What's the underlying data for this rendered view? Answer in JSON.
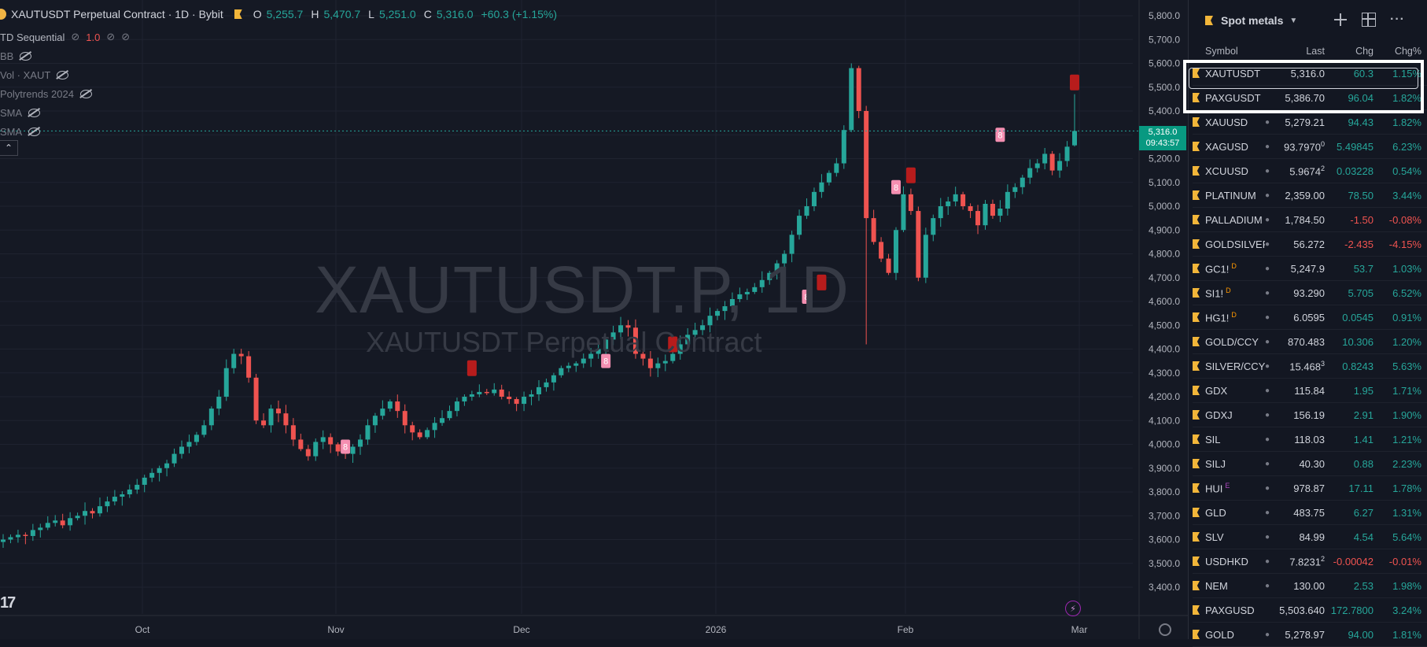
{
  "legend": {
    "title": "XAUTUSDT Perpetual Contract · 1D · Bybit",
    "o_label": "O",
    "o": "5,255.7",
    "h_label": "H",
    "h": "5,470.7",
    "l_label": "L",
    "l": "5,251.0",
    "c_label": "C",
    "c": "5,316.0",
    "change": "+60.3 (+1.15%)"
  },
  "indicators": [
    {
      "name": "TD Sequential",
      "value": "1.0"
    },
    {
      "name": "BB"
    },
    {
      "name": "Vol · XAUT"
    },
    {
      "name": "Polytrends 2024"
    },
    {
      "name": "SMA"
    },
    {
      "name": "SMA"
    }
  ],
  "watermark": {
    "symbol": "XAUTUSDT.P, 1D",
    "description": "XAUTUSDT Perpetual Contract"
  },
  "price_tag": {
    "price": "5,316.0",
    "countdown": "09:43:57"
  },
  "chart_data": {
    "type": "candlestick",
    "ylim": [
      3350,
      5850
    ],
    "y_ticks": [
      "5,800.0",
      "5,700.0",
      "5,600.0",
      "5,500.0",
      "5,400.0",
      "5,300.0",
      "5,200.0",
      "5,100.0",
      "5,000.0",
      "4,900.0",
      "4,800.0",
      "4,700.0",
      "4,600.0",
      "4,500.0",
      "4,400.0",
      "4,300.0",
      "4,200.0",
      "4,100.0",
      "4,000.0",
      "3,900.0",
      "3,800.0",
      "3,700.0",
      "3,600.0",
      "3,500.0",
      "3,400.0"
    ],
    "x_ticks": [
      "Oct",
      "Nov",
      "Dec",
      "2026",
      "Feb",
      "Mar"
    ],
    "last_price": 5316.0,
    "closes": [
      3600,
      3610,
      3620,
      3615,
      3640,
      3650,
      3670,
      3680,
      3660,
      3690,
      3700,
      3720,
      3710,
      3740,
      3760,
      3780,
      3790,
      3810,
      3830,
      3860,
      3880,
      3900,
      3920,
      3960,
      3990,
      4010,
      4040,
      4080,
      4150,
      4200,
      4320,
      4380,
      4370,
      4280,
      4100,
      4080,
      4150,
      4130,
      4080,
      4020,
      3980,
      3950,
      4010,
      4030,
      4000,
      3970,
      3960,
      3990,
      4020,
      4080,
      4120,
      4150,
      4180,
      4140,
      4080,
      4050,
      4030,
      4060,
      4090,
      4110,
      4140,
      4180,
      4200,
      4210,
      4220,
      4215,
      4230,
      4200,
      4190,
      4170,
      4200,
      4210,
      4240,
      4260,
      4290,
      4320,
      4330,
      4340,
      4360,
      4380,
      4400,
      4440,
      4470,
      4500,
      4490,
      4380,
      4360,
      4320,
      4340,
      4350,
      4380,
      4420,
      4460,
      4480,
      4500,
      4540,
      4560,
      4580,
      4610,
      4630,
      4640,
      4660,
      4690,
      4720,
      4760,
      4800,
      4880,
      4960,
      5000,
      5060,
      5100,
      5140,
      5180,
      5320,
      5580,
      5400,
      4950,
      4850,
      4780,
      4720,
      4900,
      5050,
      4980,
      4700,
      4880,
      4950,
      5000,
      5020,
      5050,
      5000,
      4980,
      4920,
      5010,
      4960,
      4990,
      5060,
      5080,
      5120,
      5160,
      5180,
      5220,
      5150,
      5190,
      5250,
      5316
    ],
    "last_candle_high": 5470.7,
    "last_candle_low": 5251.0,
    "last_candle_open": 5255.7
  },
  "watchlist": {
    "title": "Spot metals",
    "columns": {
      "symbol": "Symbol",
      "last": "Last",
      "chg": "Chg",
      "pct": "Chg%"
    },
    "rows": [
      {
        "sym": "XAUTUSDT",
        "last": "5,316.0",
        "chg": "60.3",
        "pct": "1.15%",
        "dir": "up",
        "dot": false
      },
      {
        "sym": "PAXGUSDT",
        "last": "5,386.70",
        "chg": "96.04",
        "pct": "1.82%",
        "dir": "up",
        "dot": false
      },
      {
        "sym": "XAUUSD",
        "last": "5,279.21",
        "chg": "94.43",
        "pct": "1.82%",
        "dir": "up",
        "dot": true
      },
      {
        "sym": "XAGUSD",
        "last": "93.7970",
        "chg": "5.49845",
        "pct": "6.23%",
        "dir": "up",
        "dot": true,
        "last_sup": "0"
      },
      {
        "sym": "XCUUSD",
        "last": "5.9674",
        "chg": "0.03228",
        "pct": "0.54%",
        "dir": "up",
        "dot": true,
        "last_sup": "2"
      },
      {
        "sym": "PLATINUM",
        "last": "2,359.00",
        "chg": "78.50",
        "pct": "3.44%",
        "dir": "up",
        "dot": true
      },
      {
        "sym": "PALLADIUM",
        "last": "1,784.50",
        "chg": "-1.50",
        "pct": "-0.08%",
        "dir": "down",
        "dot": true
      },
      {
        "sym": "GOLDSILVER",
        "last": "56.272",
        "chg": "-2.435",
        "pct": "-4.15%",
        "dir": "down",
        "dot": true
      },
      {
        "sym": "GC1!",
        "last": "5,247.9",
        "chg": "53.7",
        "pct": "1.03%",
        "dir": "up",
        "dot": true,
        "badge": "D"
      },
      {
        "sym": "SI1!",
        "last": "93.290",
        "chg": "5.705",
        "pct": "6.52%",
        "dir": "up",
        "dot": true,
        "badge": "D"
      },
      {
        "sym": "HG1!",
        "last": "6.0595",
        "chg": "0.0545",
        "pct": "0.91%",
        "dir": "up",
        "dot": true,
        "badge": "D"
      },
      {
        "sym": "GOLD/CCY",
        "last": "870.483",
        "chg": "10.306",
        "pct": "1.20%",
        "dir": "up",
        "dot": true
      },
      {
        "sym": "SILVER/CCY",
        "last": "15.468",
        "chg": "0.8243",
        "pct": "5.63%",
        "dir": "up",
        "dot": true,
        "last_sup": "3"
      },
      {
        "sym": "GDX",
        "last": "115.84",
        "chg": "1.95",
        "pct": "1.71%",
        "dir": "up",
        "dot": true
      },
      {
        "sym": "GDXJ",
        "last": "156.19",
        "chg": "2.91",
        "pct": "1.90%",
        "dir": "up",
        "dot": true
      },
      {
        "sym": "SIL",
        "last": "118.03",
        "chg": "1.41",
        "pct": "1.21%",
        "dir": "up",
        "dot": true
      },
      {
        "sym": "SILJ",
        "last": "40.30",
        "chg": "0.88",
        "pct": "2.23%",
        "dir": "up",
        "dot": true
      },
      {
        "sym": "HUI",
        "last": "978.87",
        "chg": "17.11",
        "pct": "1.78%",
        "dir": "up",
        "dot": true,
        "badge": "E"
      },
      {
        "sym": "GLD",
        "last": "483.75",
        "chg": "6.27",
        "pct": "1.31%",
        "dir": "up",
        "dot": true
      },
      {
        "sym": "SLV",
        "last": "84.99",
        "chg": "4.54",
        "pct": "5.64%",
        "dir": "up",
        "dot": true
      },
      {
        "sym": "USDHKD",
        "last": "7.8231",
        "chg": "-0.00042",
        "pct": "-0.01%",
        "dir": "down",
        "dot": true,
        "last_sup": "2"
      },
      {
        "sym": "NEM",
        "last": "130.00",
        "chg": "2.53",
        "pct": "1.98%",
        "dir": "up",
        "dot": true
      },
      {
        "sym": "PAXGUSD",
        "last": "5,503.640",
        "chg": "172.7800",
        "pct": "3.24%",
        "dir": "up",
        "dot": false
      },
      {
        "sym": "GOLD",
        "last": "5,278.97",
        "chg": "94.00",
        "pct": "1.81%",
        "dir": "up",
        "dot": true
      }
    ]
  },
  "colors": {
    "up": "#26a69a",
    "down": "#ef5350",
    "background": "#131722",
    "flag": "#f2b63a",
    "td_marker": "#f48fb1"
  }
}
